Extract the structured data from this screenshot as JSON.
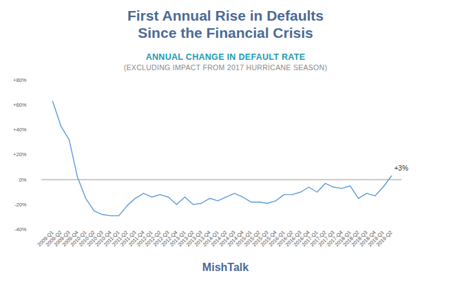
{
  "chart_data": {
    "type": "line",
    "title": "First Annual Rise in Defaults\nSince the Financial Crisis",
    "subtitle": "ANNUAL CHANGE IN DEFAULT RATE",
    "note": "(EXCLUDING IMPACT FROM 2017 HURRICANE SEASON)",
    "caption": "MishTalk",
    "categories": [
      "2009-Q1",
      "2009-Q2",
      "2009-Q3",
      "2009-Q4",
      "2010-Q1",
      "2010-Q2",
      "2010-Q3",
      "2010-Q4",
      "2011-Q1",
      "2011-Q2",
      "2011-Q3",
      "2011-Q4",
      "2012-Q1",
      "2012-Q2",
      "2012-Q3",
      "2012-Q4",
      "2013-Q1",
      "2013-Q2",
      "2013-Q3",
      "2013-Q4",
      "2014-Q1",
      "2014-Q2",
      "2014-Q3",
      "2014-Q4",
      "2015-Q1",
      "2015-Q2",
      "2015-Q3",
      "2015-Q4",
      "2016-Q1",
      "2016-Q2",
      "2016-Q3",
      "2016-Q4",
      "2017-Q1",
      "2017-Q2",
      "2017-Q3",
      "2017-Q4",
      "2018-Q1",
      "2018-Q2",
      "2018-Q3",
      "2018-Q4",
      "2019-Q1",
      "2019-Q2"
    ],
    "values": [
      63,
      43,
      32,
      2,
      -15,
      -25,
      -28,
      -29,
      -29,
      -21,
      -15,
      -11,
      -14,
      -12,
      -14,
      -20,
      -14,
      -20,
      -19,
      -15,
      -17,
      -14,
      -11,
      -14,
      -18,
      -18,
      -19,
      -17,
      -12,
      -12,
      -10,
      -6,
      -10,
      -3,
      -6,
      -7,
      -5,
      -15,
      -11,
      -13,
      -6,
      3
    ],
    "color": "#5b9bd5",
    "ylim": [
      -40,
      80
    ],
    "yticks": [
      {
        "value": -40,
        "label": "-40%"
      },
      {
        "value": -20,
        "label": "-20%"
      },
      {
        "value": 0,
        "label": "0%"
      },
      {
        "value": 20,
        "label": "+20%"
      },
      {
        "value": 40,
        "label": "+40%"
      },
      {
        "value": 60,
        "label": "+60%"
      },
      {
        "value": 80,
        "label": "+80%"
      }
    ],
    "grid": false,
    "annotations": [
      {
        "text": "+3%",
        "x": "2019-Q2",
        "y": 3
      }
    ]
  }
}
